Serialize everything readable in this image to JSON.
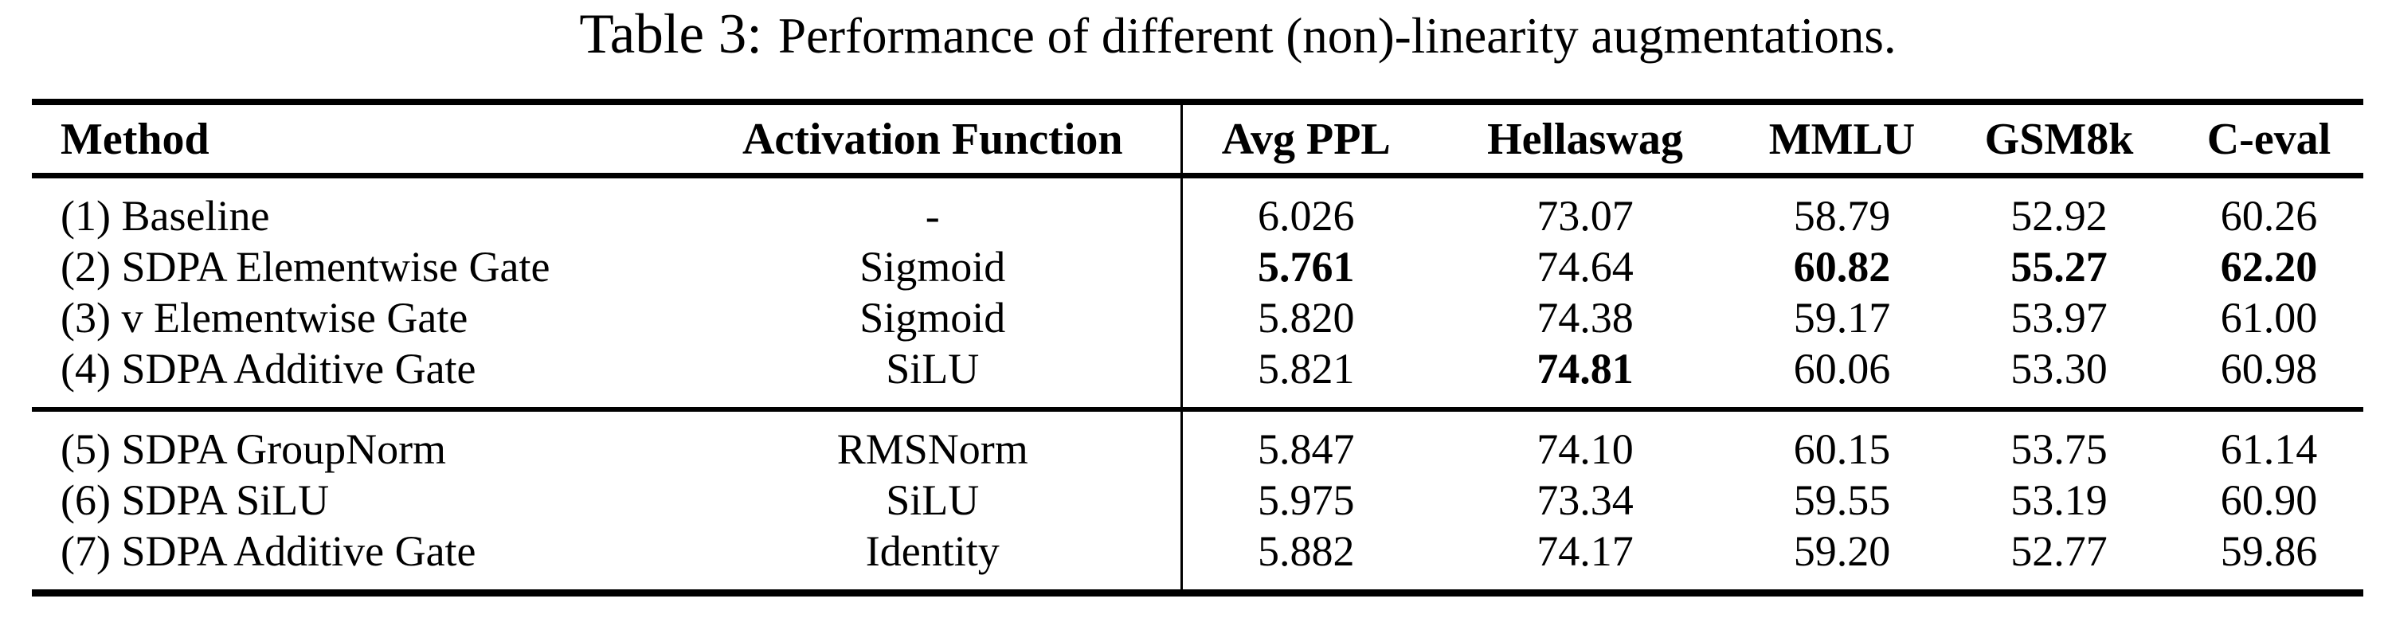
{
  "caption": {
    "label": "Table 3:",
    "text": "Performance of different (non)-linearity augmentations."
  },
  "table": {
    "columns": [
      "Method",
      "Activation Function",
      "Avg PPL",
      "Hellaswag",
      "MMLU",
      "GSM8k",
      "C-eval"
    ],
    "groups": [
      {
        "rows": [
          {
            "method": "(1) Baseline",
            "activation": "-",
            "values": [
              "6.026",
              "73.07",
              "58.79",
              "52.92",
              "60.26"
            ],
            "bold": [
              false,
              false,
              false,
              false,
              false
            ]
          },
          {
            "method": "(2) SDPA Elementwise Gate",
            "activation": "Sigmoid",
            "values": [
              "5.761",
              "74.64",
              "60.82",
              "55.27",
              "62.20"
            ],
            "bold": [
              true,
              false,
              true,
              true,
              true
            ]
          },
          {
            "method": "(3) v Elementwise Gate",
            "activation": "Sigmoid",
            "values": [
              "5.820",
              "74.38",
              "59.17",
              "53.97",
              "61.00"
            ],
            "bold": [
              false,
              false,
              false,
              false,
              false
            ]
          },
          {
            "method": "(4) SDPA Additive Gate",
            "activation": "SiLU",
            "values": [
              "5.821",
              "74.81",
              "60.06",
              "53.30",
              "60.98"
            ],
            "bold": [
              false,
              true,
              false,
              false,
              false
            ]
          }
        ]
      },
      {
        "rows": [
          {
            "method": "(5) SDPA GroupNorm",
            "activation": "RMSNorm",
            "values": [
              "5.847",
              "74.10",
              "60.15",
              "53.75",
              "61.14"
            ],
            "bold": [
              false,
              false,
              false,
              false,
              false
            ]
          },
          {
            "method": "(6) SDPA SiLU",
            "activation": "SiLU",
            "values": [
              "5.975",
              "73.34",
              "59.55",
              "53.19",
              "60.90"
            ],
            "bold": [
              false,
              false,
              false,
              false,
              false
            ]
          },
          {
            "method": "(7) SDPA Additive Gate",
            "activation": "Identity",
            "values": [
              "5.882",
              "74.17",
              "59.20",
              "52.77",
              "59.86"
            ],
            "bold": [
              false,
              false,
              false,
              false,
              false
            ]
          }
        ]
      }
    ],
    "text_color": "#000000",
    "background_color": "#ffffff"
  }
}
